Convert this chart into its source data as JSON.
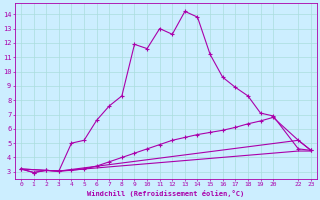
{
  "xlabel": "Windchill (Refroidissement éolien,°C)",
  "bg_color": "#cceeff",
  "line_color": "#aa00aa",
  "grid_color": "#aadddd",
  "xlim": [
    -0.5,
    23.5
  ],
  "ylim": [
    2.5,
    14.8
  ],
  "curve1_x": [
    0,
    1,
    2,
    3,
    4,
    5,
    6,
    7,
    8,
    9,
    10,
    11,
    12,
    13,
    14,
    15,
    16,
    17,
    18,
    19,
    20,
    22,
    23
  ],
  "curve1_y": [
    3.2,
    2.95,
    3.1,
    3.05,
    5.0,
    5.2,
    6.6,
    7.6,
    8.3,
    11.9,
    11.6,
    13.0,
    12.6,
    14.2,
    13.8,
    11.2,
    9.6,
    8.9,
    8.3,
    7.1,
    6.9,
    4.6,
    4.5
  ],
  "curve2_x": [
    0,
    1,
    2,
    3,
    4,
    5,
    6,
    7,
    8,
    9,
    10,
    11,
    12,
    13,
    14,
    15,
    16,
    17,
    18,
    19,
    20,
    22,
    23
  ],
  "curve2_y": [
    3.2,
    2.95,
    3.1,
    3.05,
    3.1,
    3.2,
    3.4,
    3.7,
    4.0,
    4.3,
    4.6,
    4.9,
    5.2,
    5.4,
    5.6,
    5.75,
    5.9,
    6.1,
    6.35,
    6.55,
    6.8,
    5.2,
    4.5
  ],
  "curve3_x": [
    0,
    3,
    22,
    23
  ],
  "curve3_y": [
    3.2,
    3.05,
    5.2,
    4.5
  ],
  "curve4_x": [
    0,
    3,
    22,
    23
  ],
  "curve4_y": [
    3.2,
    3.05,
    4.45,
    4.45
  ],
  "ytick_positions": [
    3,
    4,
    5,
    6,
    7,
    8,
    9,
    10,
    11,
    12,
    13,
    14
  ],
  "xtick_positions": [
    0,
    1,
    2,
    3,
    4,
    5,
    6,
    7,
    8,
    9,
    10,
    11,
    12,
    13,
    14,
    15,
    16,
    17,
    18,
    19,
    20,
    22,
    23
  ],
  "xtick_labels": [
    "0",
    "1",
    "2",
    "3",
    "4",
    "5",
    "6",
    "7",
    "8",
    "9",
    "10",
    "11",
    "12",
    "13",
    "14",
    "15",
    "16",
    "17",
    "18",
    "19",
    "20",
    "22",
    "23"
  ]
}
